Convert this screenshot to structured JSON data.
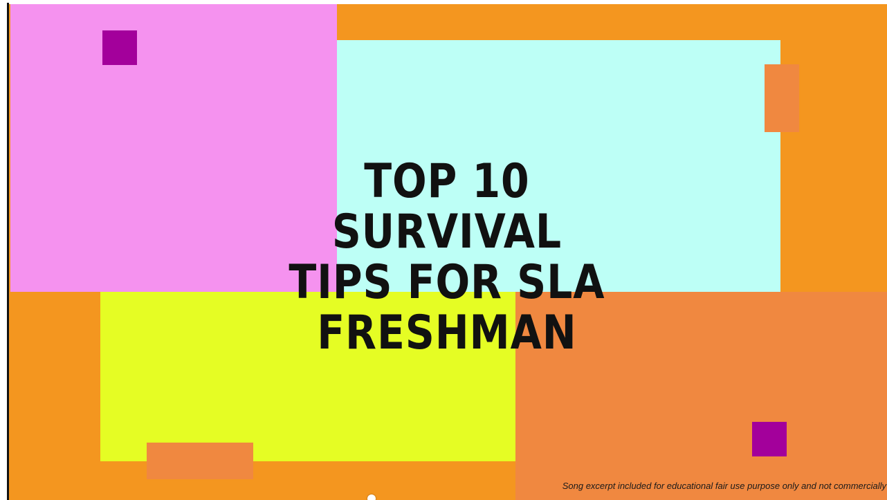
{
  "slide": {
    "title_lines": [
      "TOP 10",
      "SURVIVAL",
      "TIPS FOR SLA",
      "FRESHMAN"
    ],
    "disclaimer": "Song excerpt included for educational fair use purpose only and not commercially"
  },
  "colors": {
    "background": "#f4961f",
    "pink": "#f592ef",
    "cyan": "#bdfff6",
    "yellow": "#e5fd24",
    "salmon": "#f08840",
    "purple": "#a3009b",
    "text": "#111111"
  }
}
